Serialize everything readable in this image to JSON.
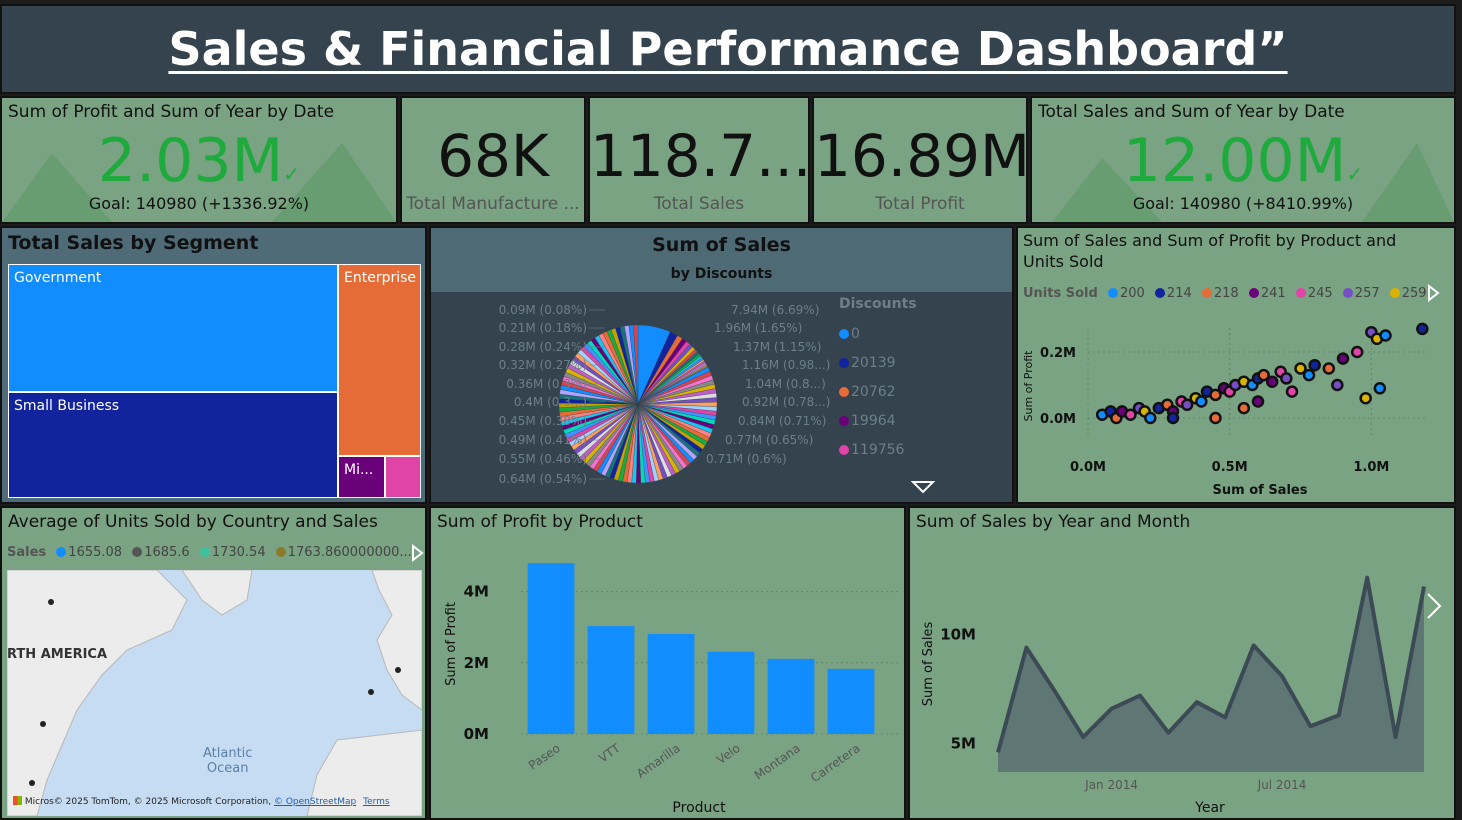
{
  "header": {
    "title": "Sales & Financial Performance Dashboard”"
  },
  "kpi_profit_goal": {
    "title": "Sum of Profit and Sum of Year by Date",
    "value": "2.03M",
    "goal": "Goal: 140980 (+1336.92%)"
  },
  "kpi_manufacture": {
    "value": "68K",
    "label": "Total Manufacture ..."
  },
  "kpi_sales": {
    "value": "118.7...",
    "label": "Total Sales"
  },
  "kpi_profit": {
    "value": "16.89M",
    "label": "Total Profit"
  },
  "kpi_sales_goal": {
    "title": "Total Sales and Sum of Year by Date",
    "value": "12.00M",
    "goal": "Goal: 140980 (+8410.99%)"
  },
  "treemap": {
    "title": "Total Sales by Segment",
    "segments": [
      {
        "label": "Government",
        "color": "#118dff"
      },
      {
        "label": "Small Business",
        "color": "#12239e"
      },
      {
        "label": "Enterprise",
        "color": "#e66c37"
      },
      {
        "label": "Mi...",
        "color": "#6b007b"
      },
      {
        "label": "",
        "color": "#e044a7"
      }
    ]
  },
  "pie": {
    "title": "Sum of Sales",
    "subtitle": "by Discounts",
    "legend_title": "Discounts",
    "legend": [
      {
        "label": "0",
        "color": "#118dff"
      },
      {
        "label": "20139",
        "color": "#12239e"
      },
      {
        "label": "20762",
        "color": "#e66c37"
      },
      {
        "label": "19964",
        "color": "#6b007b"
      },
      {
        "label": "119756",
        "color": "#e044a7"
      }
    ],
    "labels_left": [
      "0.09M (0.08%)",
      "0.21M (0.18%)",
      "0.28M (0.24%)",
      "0.32M (0.27%)",
      "0.36M (0.3%)",
      "0.4M (0.3...)",
      "0.45M (0.38%)",
      "0.49M (0.41%)",
      "0.55M (0.46%)",
      "0.64M (0.54%)"
    ],
    "labels_right": [
      "7.94M (6.69%)",
      "1.96M (1.65%)",
      "1.37M (1.15%)",
      "1.16M (0.98...)",
      "1.04M (0.8...)",
      "0.92M (0.78...)",
      "0.84M (0.71%)",
      "0.77M (0.65%)",
      "0.71M (0.6%)"
    ]
  },
  "scatter": {
    "title_line1": "Sum of Sales and Sum of Profit by Product and",
    "title_line2": "Units Sold",
    "legend_title": "Units Sold",
    "legend": [
      {
        "label": "200",
        "color": "#118dff"
      },
      {
        "label": "214",
        "color": "#12239e"
      },
      {
        "label": "218",
        "color": "#e66c37"
      },
      {
        "label": "241",
        "color": "#6b007b"
      },
      {
        "label": "245",
        "color": "#e044a7"
      },
      {
        "label": "257",
        "color": "#744ec2"
      },
      {
        "label": "259",
        "color": "#d9b300"
      }
    ],
    "xlabel": "Sum of Sales",
    "ylabel": "Sum of Profit",
    "xticks": [
      "0.0M",
      "0.5M",
      "1.0M"
    ],
    "yticks": [
      "0.2M",
      "0.0M"
    ]
  },
  "map": {
    "title": "Average of Units Sold by Country and Sales",
    "legend_title": "Sales",
    "legend": [
      {
        "label": "1655.08",
        "color": "#118dff"
      },
      {
        "label": "1685.6",
        "color": "#555555"
      },
      {
        "label": "1730.54",
        "color": "#3fc1a0"
      },
      {
        "label": "1763.860000000...",
        "color": "#8c7a2a"
      }
    ],
    "region_label": "RTH AMERICA",
    "ocean_label_1": "Atlantic",
    "ocean_label_2": "Ocean",
    "logo_text": "Micros",
    "attribution": "© 2025 TomTom, © 2025 Microsoft Corporation,",
    "osm": "© OpenStreetMap",
    "terms": "Terms"
  },
  "chart_data": [
    {
      "type": "bar",
      "title": "Sum of Profit by Product",
      "xlabel": "Product",
      "ylabel": "Sum of Profit",
      "categories": [
        "Paseo",
        "VTT",
        "Amarilla",
        "Velo",
        "Montana",
        "Carretera"
      ],
      "values": [
        4.8,
        3.03,
        2.81,
        2.31,
        2.11,
        1.83
      ],
      "unit": "M",
      "yticks": [
        "0M",
        "2M",
        "4M"
      ],
      "ylim": [
        0,
        5
      ],
      "color": "#118dff"
    },
    {
      "type": "area",
      "title": "Sum of Sales by Year and Month",
      "xlabel": "Year",
      "ylabel": "Sum of Sales",
      "x": [
        "2013-09",
        "2013-10",
        "2013-11",
        "2013-12",
        "2014-01",
        "2014-02",
        "2014-03",
        "2014-04",
        "2014-05",
        "2014-06",
        "2014-07",
        "2014-08",
        "2014-09",
        "2014-10",
        "2014-11",
        "2014-12"
      ],
      "values": [
        4.6,
        9.4,
        7.4,
        5.3,
        6.6,
        7.2,
        5.5,
        6.9,
        6.2,
        9.5,
        8.1,
        5.8,
        6.3,
        12.6,
        5.3,
        12.2
      ],
      "unit": "M",
      "xticks": [
        "Jan 2014",
        "Jul 2014"
      ],
      "yticks": [
        "5M",
        "10M"
      ],
      "color": "#3b4a55"
    },
    {
      "type": "scatter",
      "title": "Sum of Sales and Sum of Profit by Product and Units Sold",
      "xlabel": "Sum of Sales",
      "ylabel": "Sum of Profit",
      "points": [
        [
          0.05,
          0.01
        ],
        [
          0.08,
          0.02
        ],
        [
          0.1,
          0.0
        ],
        [
          0.12,
          0.02
        ],
        [
          0.15,
          0.01
        ],
        [
          0.18,
          0.03
        ],
        [
          0.2,
          0.02
        ],
        [
          0.22,
          0.0
        ],
        [
          0.25,
          0.03
        ],
        [
          0.28,
          0.04
        ],
        [
          0.3,
          0.02
        ],
        [
          0.33,
          0.05
        ],
        [
          0.35,
          0.04
        ],
        [
          0.38,
          0.06
        ],
        [
          0.4,
          0.05
        ],
        [
          0.42,
          0.08
        ],
        [
          0.45,
          0.07
        ],
        [
          0.48,
          0.09
        ],
        [
          0.5,
          0.08
        ],
        [
          0.52,
          0.1
        ],
        [
          0.55,
          0.11
        ],
        [
          0.58,
          0.1
        ],
        [
          0.6,
          0.12
        ],
        [
          0.62,
          0.13
        ],
        [
          0.65,
          0.11
        ],
        [
          0.68,
          0.14
        ],
        [
          0.7,
          0.12
        ],
        [
          0.75,
          0.15
        ],
        [
          0.78,
          0.13
        ],
        [
          0.8,
          0.16
        ],
        [
          0.85,
          0.15
        ],
        [
          0.9,
          0.18
        ],
        [
          0.95,
          0.2
        ],
        [
          1.0,
          0.26
        ],
        [
          1.02,
          0.24
        ],
        [
          1.05,
          0.25
        ],
        [
          1.18,
          0.27
        ],
        [
          0.45,
          0.0
        ],
        [
          0.6,
          0.05
        ],
        [
          0.72,
          0.08
        ],
        [
          0.88,
          0.1
        ],
        [
          0.98,
          0.06
        ],
        [
          1.03,
          0.09
        ],
        [
          0.3,
          0.0
        ],
        [
          0.55,
          0.03
        ]
      ]
    },
    {
      "type": "pie",
      "title": "Sum of Sales",
      "subtitle": "by Discounts",
      "slices": [
        {
          "label": "7.94M (6.69%)",
          "value": 7.94,
          "color": "#118dff"
        },
        {
          "label": "1.96M (1.65%)",
          "value": 1.96,
          "color": "#12239e"
        },
        {
          "label": "1.37M (1.15%)",
          "value": 1.37,
          "color": "#e66c37"
        },
        {
          "label": "1.16M (0.98...)",
          "value": 1.16,
          "color": "#6b007b"
        },
        {
          "label": "1.04M (0.8...)",
          "value": 1.04,
          "color": "#e044a7"
        },
        {
          "label": "0.92M (0.78...)",
          "value": 0.92,
          "color": "#744ec2"
        },
        {
          "label": "0.84M (0.71%)",
          "value": 0.84,
          "color": "#d9b300"
        },
        {
          "label": "0.77M (0.65%)",
          "value": 0.77,
          "color": "#d64550"
        },
        {
          "label": "0.71M (0.6%)",
          "value": 0.71,
          "color": "#197278"
        },
        {
          "label": "0.64M (0.54%)",
          "value": 0.64,
          "color": "#1aab40"
        },
        {
          "label": "0.55M (0.46%)",
          "value": 0.55,
          "color": "#15c6f4"
        },
        {
          "label": "0.49M (0.41%)",
          "value": 0.49,
          "color": "#4092ff"
        },
        {
          "label": "0.45M (0.38%)",
          "value": 0.45,
          "color": "#ffa058"
        },
        {
          "label": "0.4M (0.3...)",
          "value": 0.4,
          "color": "#be5dc9"
        },
        {
          "label": "0.36M (0.3%)",
          "value": 0.36,
          "color": "#f472d0"
        },
        {
          "label": "0.32M (0.27%)",
          "value": 0.32,
          "color": "#b5a1ff"
        },
        {
          "label": "0.28M (0.24%)",
          "value": 0.28,
          "color": "#c4a200"
        },
        {
          "label": "0.21M (0.18%)",
          "value": 0.21,
          "color": "#ff8080"
        },
        {
          "label": "0.09M (0.08%)",
          "value": 0.09,
          "color": "#00dbbc"
        }
      ]
    }
  ]
}
